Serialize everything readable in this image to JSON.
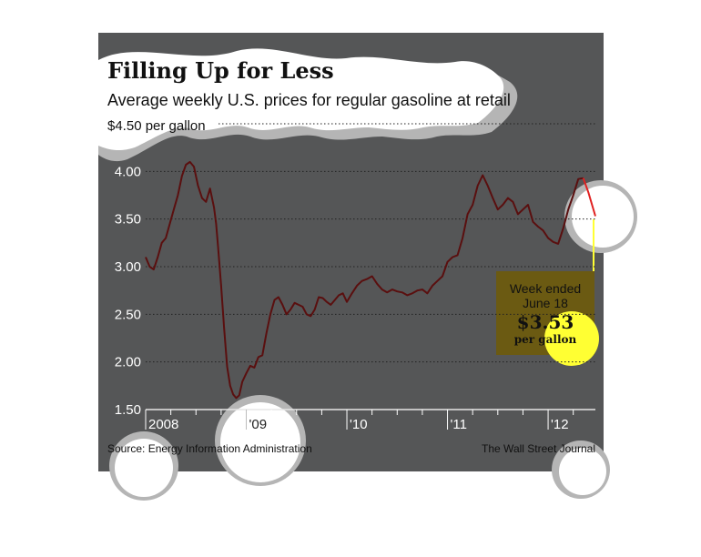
{
  "header": {
    "title": "Filling Up for Less",
    "subtitle": "Average weekly U.S. prices for regular gasoline at retail",
    "unit_label": "$4.50 per gallon"
  },
  "footer": {
    "source": "Source: Energy Information Administration",
    "credit": "The Wall Street Journal"
  },
  "annotation": {
    "line1": "Week ended",
    "line2": "June 18",
    "value": "$3.53",
    "unit": "per gallon"
  },
  "colors": {
    "panel": "#555657",
    "line": "#5a0f0f",
    "line_recent": "#e02020",
    "highlight": "#ffff33",
    "annotation_box": "#6b5a12"
  },
  "chart_data": {
    "type": "line",
    "title": "Filling Up for Less",
    "subtitle": "Average weekly U.S. prices for regular gasoline at retail",
    "ylabel": "$4.50 per gallon",
    "ylim": [
      1.5,
      4.5
    ],
    "yticks": [
      1.5,
      2.0,
      2.5,
      3.0,
      3.5,
      4.0
    ],
    "ytick_labels": [
      "1.50",
      "2.00",
      "2.50",
      "3.00",
      "3.50",
      "4.00"
    ],
    "xlim": [
      2008.0,
      2012.47
    ],
    "xticks": [
      2008,
      2009,
      2010,
      2011,
      2012
    ],
    "xtick_labels": [
      "2008",
      "'09",
      "'10",
      "'11",
      "'12"
    ],
    "grid": true,
    "series": [
      {
        "x": [
          2008.0,
          2008.04,
          2008.08,
          2008.12,
          2008.16,
          2008.2,
          2008.24,
          2008.28,
          2008.32,
          2008.36,
          2008.4,
          2008.44,
          2008.48,
          2008.52,
          2008.56,
          2008.6,
          2008.64,
          2008.68,
          2008.7,
          2008.72,
          2008.75,
          2008.78,
          2008.81,
          2008.84,
          2008.87,
          2008.9,
          2008.93,
          2008.96,
          2009.0,
          2009.04,
          2009.08,
          2009.12,
          2009.16,
          2009.2,
          2009.24,
          2009.28,
          2009.32,
          2009.36,
          2009.4,
          2009.44,
          2009.48,
          2009.52,
          2009.56,
          2009.6,
          2009.64,
          2009.68,
          2009.72,
          2009.76,
          2009.8,
          2009.84,
          2009.88,
          2009.92,
          2009.96,
          2010.0,
          2010.05,
          2010.1,
          2010.15,
          2010.2,
          2010.25,
          2010.3,
          2010.35,
          2010.4,
          2010.45,
          2010.5,
          2010.55,
          2010.6,
          2010.65,
          2010.7,
          2010.75,
          2010.8,
          2010.85,
          2010.9,
          2010.95,
          2011.0,
          2011.05,
          2011.1,
          2011.15,
          2011.2,
          2011.25,
          2011.3,
          2011.35,
          2011.4,
          2011.45,
          2011.5,
          2011.55,
          2011.6,
          2011.65,
          2011.7,
          2011.75,
          2011.8,
          2011.85,
          2011.9,
          2011.95,
          2012.0,
          2012.05,
          2012.1,
          2012.15,
          2012.2,
          2012.25,
          2012.3,
          2012.35
        ],
        "y": [
          3.1,
          3.0,
          2.97,
          3.1,
          3.25,
          3.3,
          3.45,
          3.6,
          3.75,
          3.95,
          4.07,
          4.1,
          4.05,
          3.85,
          3.72,
          3.68,
          3.82,
          3.62,
          3.45,
          3.2,
          2.8,
          2.35,
          1.95,
          1.75,
          1.66,
          1.62,
          1.65,
          1.79,
          1.88,
          1.96,
          1.94,
          2.05,
          2.07,
          2.3,
          2.5,
          2.65,
          2.68,
          2.6,
          2.5,
          2.55,
          2.62,
          2.6,
          2.58,
          2.5,
          2.48,
          2.55,
          2.68,
          2.67,
          2.63,
          2.6,
          2.65,
          2.7,
          2.72,
          2.63,
          2.72,
          2.8,
          2.85,
          2.87,
          2.9,
          2.82,
          2.76,
          2.73,
          2.76,
          2.74,
          2.73,
          2.7,
          2.72,
          2.75,
          2.76,
          2.72,
          2.8,
          2.85,
          2.9,
          3.05,
          3.1,
          3.12,
          3.3,
          3.55,
          3.65,
          3.85,
          3.96,
          3.85,
          3.72,
          3.6,
          3.65,
          3.72,
          3.68,
          3.55,
          3.6,
          3.65,
          3.47,
          3.42,
          3.38,
          3.3,
          3.26,
          3.24,
          3.4,
          3.6,
          3.75,
          3.92,
          3.93
        ]
      },
      {
        "x": [
          2012.35,
          2012.4,
          2012.47
        ],
        "y": [
          3.93,
          3.78,
          3.53
        ]
      }
    ]
  }
}
